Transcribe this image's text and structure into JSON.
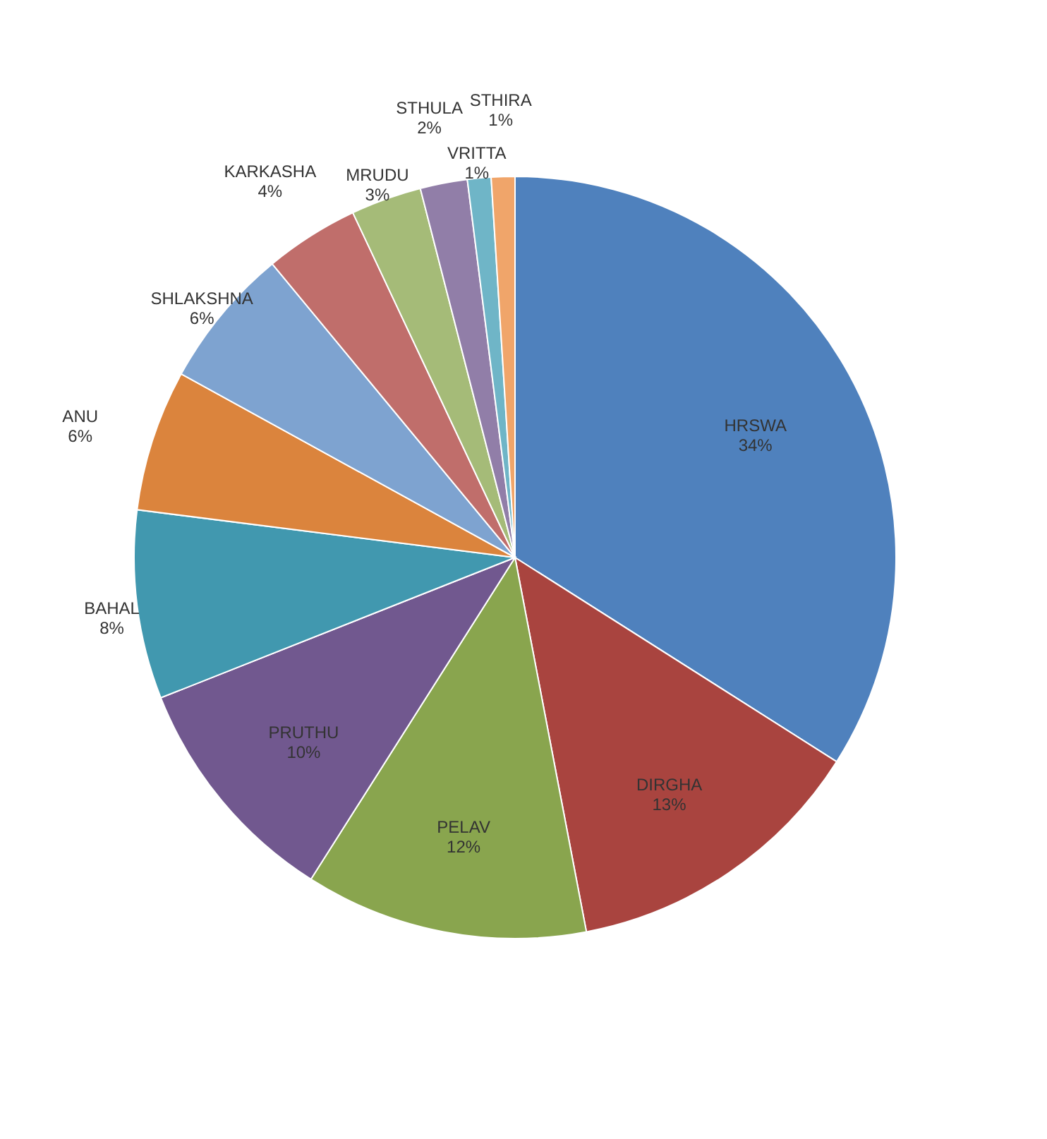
{
  "chart_data": {
    "type": "pie",
    "categories": [
      "HRSWA",
      "DIRGHA",
      "PELAV",
      "PRUTHU",
      "BAHAL",
      "ANU",
      "SHLAKSHNA",
      "KARKASHA",
      "MRUDU",
      "STHULA",
      "VRITTA",
      "STHIRA"
    ],
    "values": [
      34,
      13,
      12,
      10,
      8,
      6,
      6,
      4,
      3,
      2,
      1,
      1
    ],
    "value_labels": [
      "34%",
      "13%",
      "12%",
      "10%",
      "8%",
      "6%",
      "6%",
      "4%",
      "3%",
      "2%",
      "1%",
      "1%"
    ],
    "colors": [
      "#4f81bd",
      "#a9443f",
      "#89a54e",
      "#71588f",
      "#4198af",
      "#db843d",
      "#7ea3d0",
      "#c06e6b",
      "#a5bb78",
      "#917ea8",
      "#6fb5c7",
      "#f0a56a"
    ],
    "legend": false
  }
}
